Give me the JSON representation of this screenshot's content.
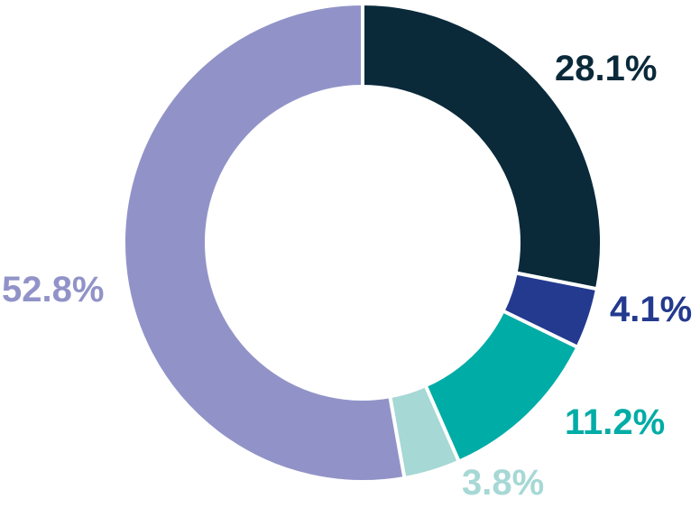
{
  "chart_data": {
    "type": "pie",
    "variant": "donut",
    "title": "",
    "slices": [
      {
        "value": 28.1,
        "label": "28.1%",
        "color": "#0a2a3a"
      },
      {
        "value": 4.1,
        "label": "4.1%",
        "color": "#233a8f"
      },
      {
        "value": 11.2,
        "label": "11.2%",
        "color": "#00aca6"
      },
      {
        "value": 3.8,
        "label": "3.8%",
        "color": "#a6d8d5"
      },
      {
        "value": 52.8,
        "label": "52.8%",
        "color": "#9193c8"
      }
    ],
    "start_angle": "12 o'clock",
    "direction": "clockwise",
    "legend": "none"
  }
}
